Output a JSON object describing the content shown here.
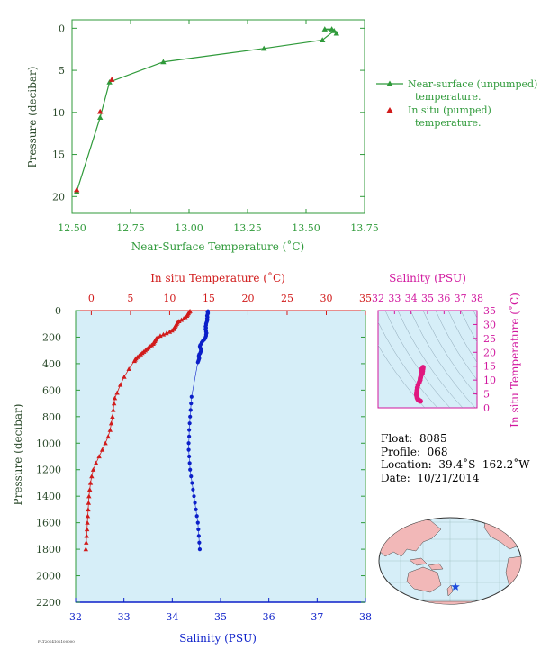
{
  "chart_data": [
    {
      "type": "line",
      "xlabel": "Near-Surface Temperature (˚C)",
      "ylabel": "Pressure (decibar)",
      "xlim": [
        12.5,
        13.75
      ],
      "ylim": [
        22,
        -1
      ],
      "x_ticks": [
        "12.50",
        "12.75",
        "13.00",
        "13.25",
        "13.50",
        "13.75"
      ],
      "y_ticks": [
        "0",
        "5",
        "10",
        "15",
        "20"
      ],
      "legend_position": "right",
      "colors": {
        "series1": "#2f9a3a",
        "series2": "#d11b1b",
        "axes": "#2f9a3a"
      },
      "series": [
        {
          "name": "Near-surface (unpumped) temperature.",
          "legend_lines": [
            "Near-surface (unpumped)",
            "temperature."
          ],
          "marker": "triangle",
          "points": [
            [
              13.63,
              0.6
            ],
            [
              13.61,
              0.1
            ],
            [
              13.58,
              0.1
            ],
            [
              13.62,
              0.3
            ],
            [
              13.57,
              1.4
            ],
            [
              13.32,
              2.4
            ],
            [
              12.89,
              4.0
            ],
            [
              12.66,
              6.4
            ],
            [
              12.62,
              10.6
            ],
            [
              12.52,
              19.4
            ]
          ]
        },
        {
          "name": "In situ (pumped) temperature.",
          "legend_lines": [
            "In situ (pumped)",
            "temperature."
          ],
          "marker": "triangle",
          "points": [
            [
              12.67,
              6.1
            ],
            [
              12.62,
              9.9
            ],
            [
              12.52,
              19.2
            ]
          ]
        }
      ]
    },
    {
      "type": "line",
      "top_xlabel": "In situ Temperature (˚C)",
      "bottom_xlabel": "Salinity (PSU)",
      "ylabel": "Pressure (decibar)",
      "top_xlim": [
        -2,
        35
      ],
      "bottom_xlim": [
        32,
        38
      ],
      "ylim": [
        2200,
        0
      ],
      "top_ticks": [
        "0",
        "5",
        "10",
        "15",
        "20",
        "25",
        "30",
        "35"
      ],
      "bottom_ticks": [
        "32",
        "33",
        "34",
        "35",
        "36",
        "37",
        "38"
      ],
      "y_ticks": [
        "0",
        "200",
        "400",
        "600",
        "800",
        "1000",
        "1200",
        "1400",
        "1600",
        "1800",
        "2000",
        "2200"
      ],
      "background": "#d6eef8",
      "colors": {
        "temperature": "#d11b1b",
        "salinity": "#0b1fc9",
        "axes": "#2f9a3a"
      },
      "series": [
        {
          "name": "In situ Temperature",
          "axis": "top",
          "marker": "triangle",
          "points": [
            [
              12.6,
              5
            ],
            [
              12.5,
              10
            ],
            [
              12.4,
              20
            ],
            [
              12.3,
              30
            ],
            [
              12.2,
              40
            ],
            [
              12.0,
              50
            ],
            [
              11.8,
              60
            ],
            [
              11.5,
              70
            ],
            [
              11.2,
              80
            ],
            [
              11.0,
              90
            ],
            [
              10.9,
              100
            ],
            [
              10.8,
              110
            ],
            [
              10.7,
              120
            ],
            [
              10.6,
              130
            ],
            [
              10.5,
              140
            ],
            [
              10.3,
              150
            ],
            [
              10.0,
              160
            ],
            [
              9.6,
              170
            ],
            [
              9.2,
              180
            ],
            [
              8.8,
              190
            ],
            [
              8.5,
              200
            ],
            [
              8.3,
              210
            ],
            [
              8.2,
              220
            ],
            [
              8.1,
              230
            ],
            [
              8.0,
              240
            ],
            [
              7.9,
              250
            ],
            [
              7.7,
              260
            ],
            [
              7.5,
              270
            ],
            [
              7.3,
              280
            ],
            [
              7.1,
              290
            ],
            [
              6.9,
              300
            ],
            [
              6.7,
              310
            ],
            [
              6.5,
              320
            ],
            [
              6.3,
              330
            ],
            [
              6.1,
              340
            ],
            [
              5.9,
              350
            ],
            [
              5.7,
              360
            ],
            [
              5.6,
              370
            ],
            [
              5.5,
              380
            ],
            [
              4.8,
              440
            ],
            [
              4.2,
              500
            ],
            [
              3.7,
              560
            ],
            [
              3.3,
              620
            ],
            [
              3.0,
              660
            ],
            [
              2.9,
              700
            ],
            [
              2.8,
              750
            ],
            [
              2.7,
              800
            ],
            [
              2.55,
              850
            ],
            [
              2.4,
              900
            ],
            [
              2.15,
              950
            ],
            [
              1.8,
              1000
            ],
            [
              1.4,
              1050
            ],
            [
              1.0,
              1100
            ],
            [
              0.6,
              1150
            ],
            [
              0.25,
              1200
            ],
            [
              0.05,
              1250
            ],
            [
              -0.1,
              1300
            ],
            [
              -0.2,
              1350
            ],
            [
              -0.3,
              1400
            ],
            [
              -0.35,
              1450
            ],
            [
              -0.4,
              1500
            ],
            [
              -0.45,
              1550
            ],
            [
              -0.5,
              1600
            ],
            [
              -0.55,
              1650
            ],
            [
              -0.6,
              1700
            ],
            [
              -0.65,
              1750
            ],
            [
              -0.7,
              1800
            ]
          ]
        },
        {
          "name": "Salinity",
          "axis": "bottom",
          "marker": "circle",
          "points": [
            [
              34.74,
              5
            ],
            [
              34.73,
              10
            ],
            [
              34.74,
              20
            ],
            [
              34.73,
              30
            ],
            [
              34.72,
              40
            ],
            [
              34.73,
              50
            ],
            [
              34.72,
              60
            ],
            [
              34.73,
              70
            ],
            [
              34.72,
              80
            ],
            [
              34.71,
              90
            ],
            [
              34.7,
              100
            ],
            [
              34.7,
              110
            ],
            [
              34.69,
              120
            ],
            [
              34.7,
              130
            ],
            [
              34.69,
              140
            ],
            [
              34.7,
              150
            ],
            [
              34.7,
              160
            ],
            [
              34.71,
              170
            ],
            [
              34.7,
              180
            ],
            [
              34.7,
              190
            ],
            [
              34.69,
              200
            ],
            [
              34.68,
              210
            ],
            [
              34.66,
              220
            ],
            [
              34.63,
              230
            ],
            [
              34.61,
              240
            ],
            [
              34.6,
              250
            ],
            [
              34.58,
              260
            ],
            [
              34.57,
              270
            ],
            [
              34.58,
              280
            ],
            [
              34.59,
              290
            ],
            [
              34.6,
              300
            ],
            [
              34.59,
              310
            ],
            [
              34.58,
              320
            ],
            [
              34.56,
              330
            ],
            [
              34.55,
              340
            ],
            [
              34.55,
              350
            ],
            [
              34.56,
              360
            ],
            [
              34.55,
              370
            ],
            [
              34.54,
              380
            ],
            [
              34.53,
              390
            ],
            [
              34.4,
              650
            ],
            [
              34.39,
              700
            ],
            [
              34.38,
              750
            ],
            [
              34.37,
              800
            ],
            [
              34.36,
              850
            ],
            [
              34.35,
              900
            ],
            [
              34.35,
              950
            ],
            [
              34.34,
              1000
            ],
            [
              34.34,
              1050
            ],
            [
              34.35,
              1100
            ],
            [
              34.36,
              1150
            ],
            [
              34.37,
              1200
            ],
            [
              34.39,
              1250
            ],
            [
              34.41,
              1300
            ],
            [
              34.43,
              1350
            ],
            [
              34.45,
              1400
            ],
            [
              34.47,
              1450
            ],
            [
              34.49,
              1500
            ],
            [
              34.51,
              1550
            ],
            [
              34.53,
              1600
            ],
            [
              34.54,
              1650
            ],
            [
              34.55,
              1700
            ],
            [
              34.56,
              1750
            ],
            [
              34.57,
              1800
            ]
          ]
        }
      ]
    },
    {
      "type": "scatter",
      "xlabel": "Salinity (PSU)",
      "ylabel": "In situ Temperature (˚C)",
      "xlim": [
        32,
        38
      ],
      "ylim": [
        0,
        35
      ],
      "x_ticks": [
        "32",
        "33",
        "34",
        "35",
        "36",
        "37",
        "38"
      ],
      "y_ticks": [
        "0",
        "5",
        "10",
        "15",
        "20",
        "25",
        "30",
        "35"
      ],
      "colors": {
        "points": "#e0187f",
        "axes": "#d1179e"
      },
      "points": [
        [
          34.73,
          14.6
        ],
        [
          34.72,
          14.0
        ],
        [
          34.7,
          13.2
        ],
        [
          34.68,
          12.4
        ],
        [
          34.6,
          11.6
        ],
        [
          34.56,
          10.6
        ],
        [
          34.55,
          10.0
        ],
        [
          34.5,
          9.2
        ],
        [
          34.42,
          8.2
        ],
        [
          34.38,
          7.2
        ],
        [
          34.36,
          6.3
        ],
        [
          34.34,
          5.5
        ],
        [
          34.33,
          4.8
        ],
        [
          34.35,
          4.2
        ],
        [
          34.37,
          3.6
        ],
        [
          34.4,
          3.2
        ],
        [
          34.43,
          2.9
        ],
        [
          34.47,
          2.7
        ],
        [
          34.51,
          2.6
        ],
        [
          34.55,
          2.5
        ],
        [
          34.57,
          2.4
        ],
        [
          34.62,
          13.8
        ],
        [
          34.65,
          12.8
        ],
        [
          34.58,
          11.0
        ]
      ]
    }
  ],
  "float_info": {
    "float": "Float:  8085",
    "profile": "Profile:  068",
    "location": "Location:  39.4˚S  162.2˚W",
    "date": "Date:  10/21/2014"
  },
  "footer_id": "PLT2014102100000"
}
